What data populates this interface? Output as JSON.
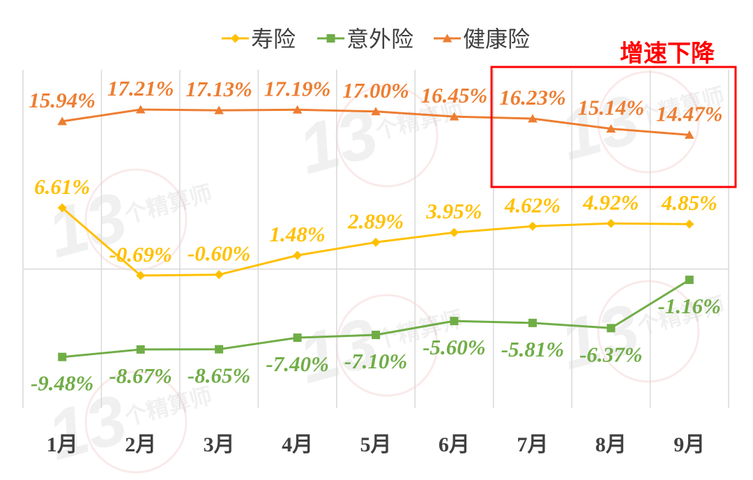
{
  "chart_data": {
    "type": "line",
    "categories": [
      "1月",
      "2月",
      "3月",
      "4月",
      "5月",
      "6月",
      "7月",
      "8月",
      "9月"
    ],
    "series": [
      {
        "name": "寿险",
        "color": "#FFC000",
        "marker": "diamond",
        "label_position": "above",
        "values": [
          6.61,
          -0.69,
          -0.6,
          1.48,
          2.89,
          3.95,
          4.62,
          4.92,
          4.85
        ],
        "data_labels": [
          "6.61%",
          "-0.69%",
          "-0.60%",
          "1.48%",
          "2.89%",
          "3.95%",
          "4.62%",
          "4.92%",
          "4.85%"
        ]
      },
      {
        "name": "意外险",
        "color": "#70AD47",
        "marker": "square",
        "label_position": "below",
        "values": [
          -9.48,
          -8.67,
          -8.65,
          -7.4,
          -7.1,
          -5.6,
          -5.81,
          -6.37,
          -1.16
        ],
        "data_labels": [
          "-9.48%",
          "-8.67%",
          "-8.65%",
          "-7.40%",
          "-7.10%",
          "-5.60%",
          "-5.81%",
          "-6.37%",
          "-1.16%"
        ]
      },
      {
        "name": "健康险",
        "color": "#ED7D31",
        "marker": "triangle",
        "label_position": "above",
        "values": [
          15.94,
          17.21,
          17.13,
          17.19,
          17.0,
          16.45,
          16.23,
          15.14,
          14.47
        ],
        "data_labels": [
          "15.94%",
          "17.21%",
          "17.13%",
          "17.19%",
          "17.00%",
          "16.45%",
          "16.23%",
          "15.14%",
          "14.47%"
        ]
      }
    ],
    "ylim": [
      -15,
      21.5
    ],
    "grid": "vertical",
    "legend_position": "top"
  },
  "annotation": {
    "text": "增速下降",
    "color": "#FF0000"
  },
  "watermark": {
    "number": "13",
    "text": "个精算师"
  },
  "colors": {
    "gridline": "#D9D9D9",
    "axis_text": "#404040"
  }
}
